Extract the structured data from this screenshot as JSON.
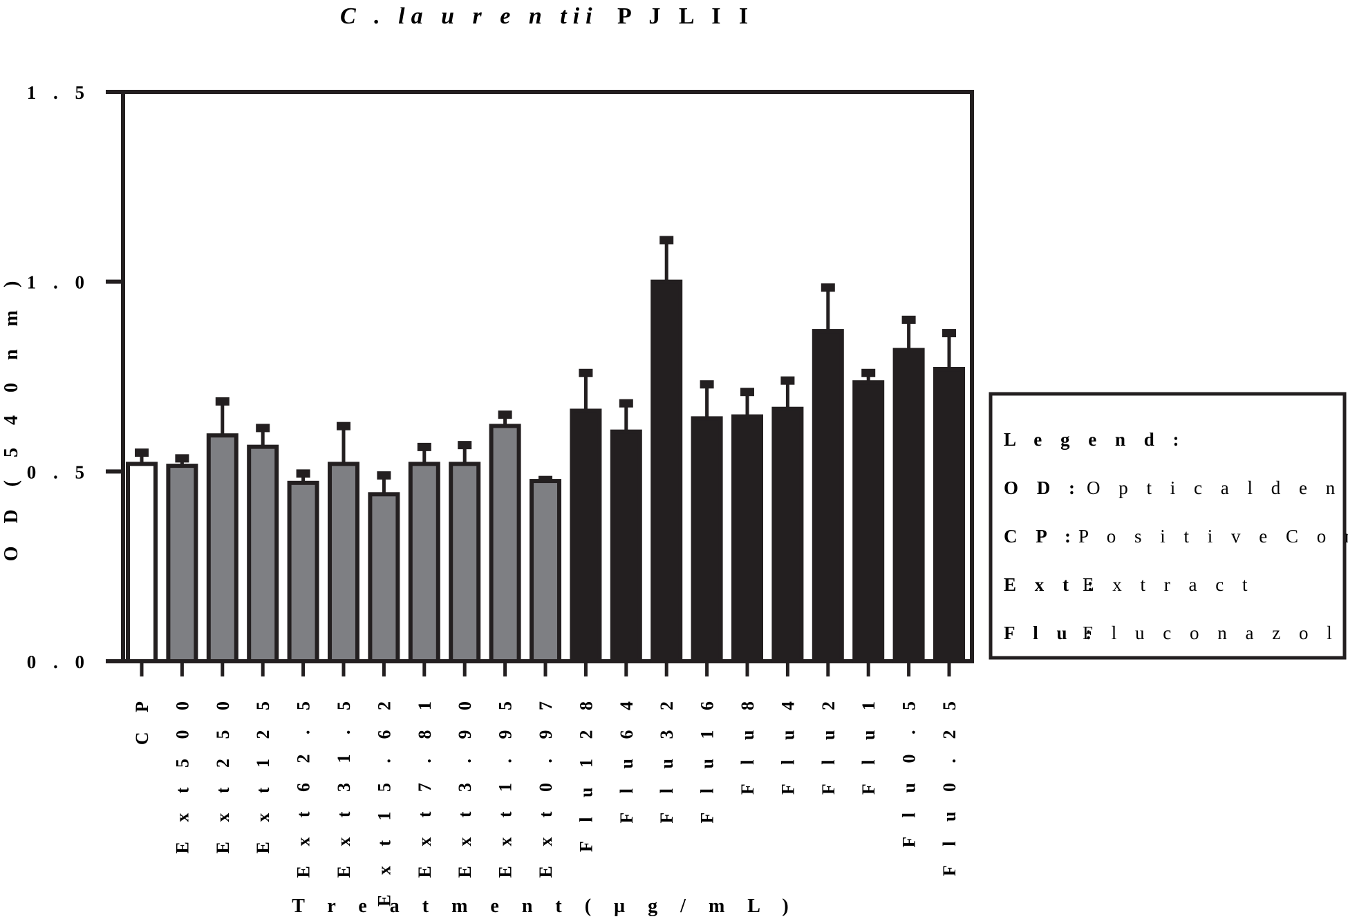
{
  "chart_data": {
    "type": "bar",
    "title": {
      "species": "C . la u r e n tii",
      "strain": "P J L I I"
    },
    "xlabel": "T r e a t m e n t ( µ g / m L )",
    "ylabel": "O D ( 5 4 0 n m )",
    "ylim": [
      0,
      1.5
    ],
    "yticks": [
      {
        "value": 0.0,
        "label": "0 . 0"
      },
      {
        "value": 0.5,
        "label": "0 . 5"
      },
      {
        "value": 1.0,
        "label": "1 . 0"
      },
      {
        "value": 1.5,
        "label": "1 . 5"
      }
    ],
    "grid": false,
    "categories": [
      "C P",
      "E x t 5 0 0",
      "E x t 2 5 0",
      "E x t 1 2 5",
      "E x t 6 2 . 5",
      "E x t 3 1 . 5",
      "E x t 1 5 . 6 2",
      "E x t 7 . 8 1",
      "E x t 3 . 9 0",
      "E x t 1 . 9 5",
      "E x t 0 . 9 7",
      "F l u 1 2 8",
      "F l u 6 4",
      "F l u 3 2",
      "F l u 1 6",
      "F l u 8",
      "F l u 4",
      "F l u 2",
      "F l u 1",
      "F l u 0 . 5",
      "F l u 0 . 2 5"
    ],
    "values": [
      0.52,
      0.515,
      0.595,
      0.565,
      0.47,
      0.52,
      0.44,
      0.52,
      0.52,
      0.62,
      0.475,
      0.66,
      0.605,
      1.0,
      0.64,
      0.645,
      0.665,
      0.87,
      0.735,
      0.82,
      0.77
    ],
    "errors": [
      0.035,
      0.025,
      0.095,
      0.055,
      0.03,
      0.105,
      0.055,
      0.05,
      0.055,
      0.035,
      0.008,
      0.105,
      0.08,
      0.115,
      0.095,
      0.07,
      0.08,
      0.12,
      0.03,
      0.085,
      0.1
    ],
    "groups": [
      "control",
      "extract",
      "extract",
      "extract",
      "extract",
      "extract",
      "extract",
      "extract",
      "extract",
      "extract",
      "extract",
      "fluconazole",
      "fluconazole",
      "fluconazole",
      "fluconazole",
      "fluconazole",
      "fluconazole",
      "fluconazole",
      "fluconazole",
      "fluconazole",
      "fluconazole"
    ],
    "group_colors": {
      "control": "#ffffff",
      "extract": "#7e7f83",
      "fluconazole": "#231f20"
    },
    "stroke_color": "#231f20",
    "legend": {
      "position": "right",
      "title": "L e g e n d :",
      "entries": [
        {
          "key": "O D :",
          "text": "O p t i c a l d e n s i t y"
        },
        {
          "key": "C P :",
          "text": "P o s i t i v e C o n t r o l"
        },
        {
          "key": "E x t :",
          "text": "E x t r a c t"
        },
        {
          "key": "F l u :",
          "text": "F l u c o n a z o l e"
        }
      ]
    }
  }
}
